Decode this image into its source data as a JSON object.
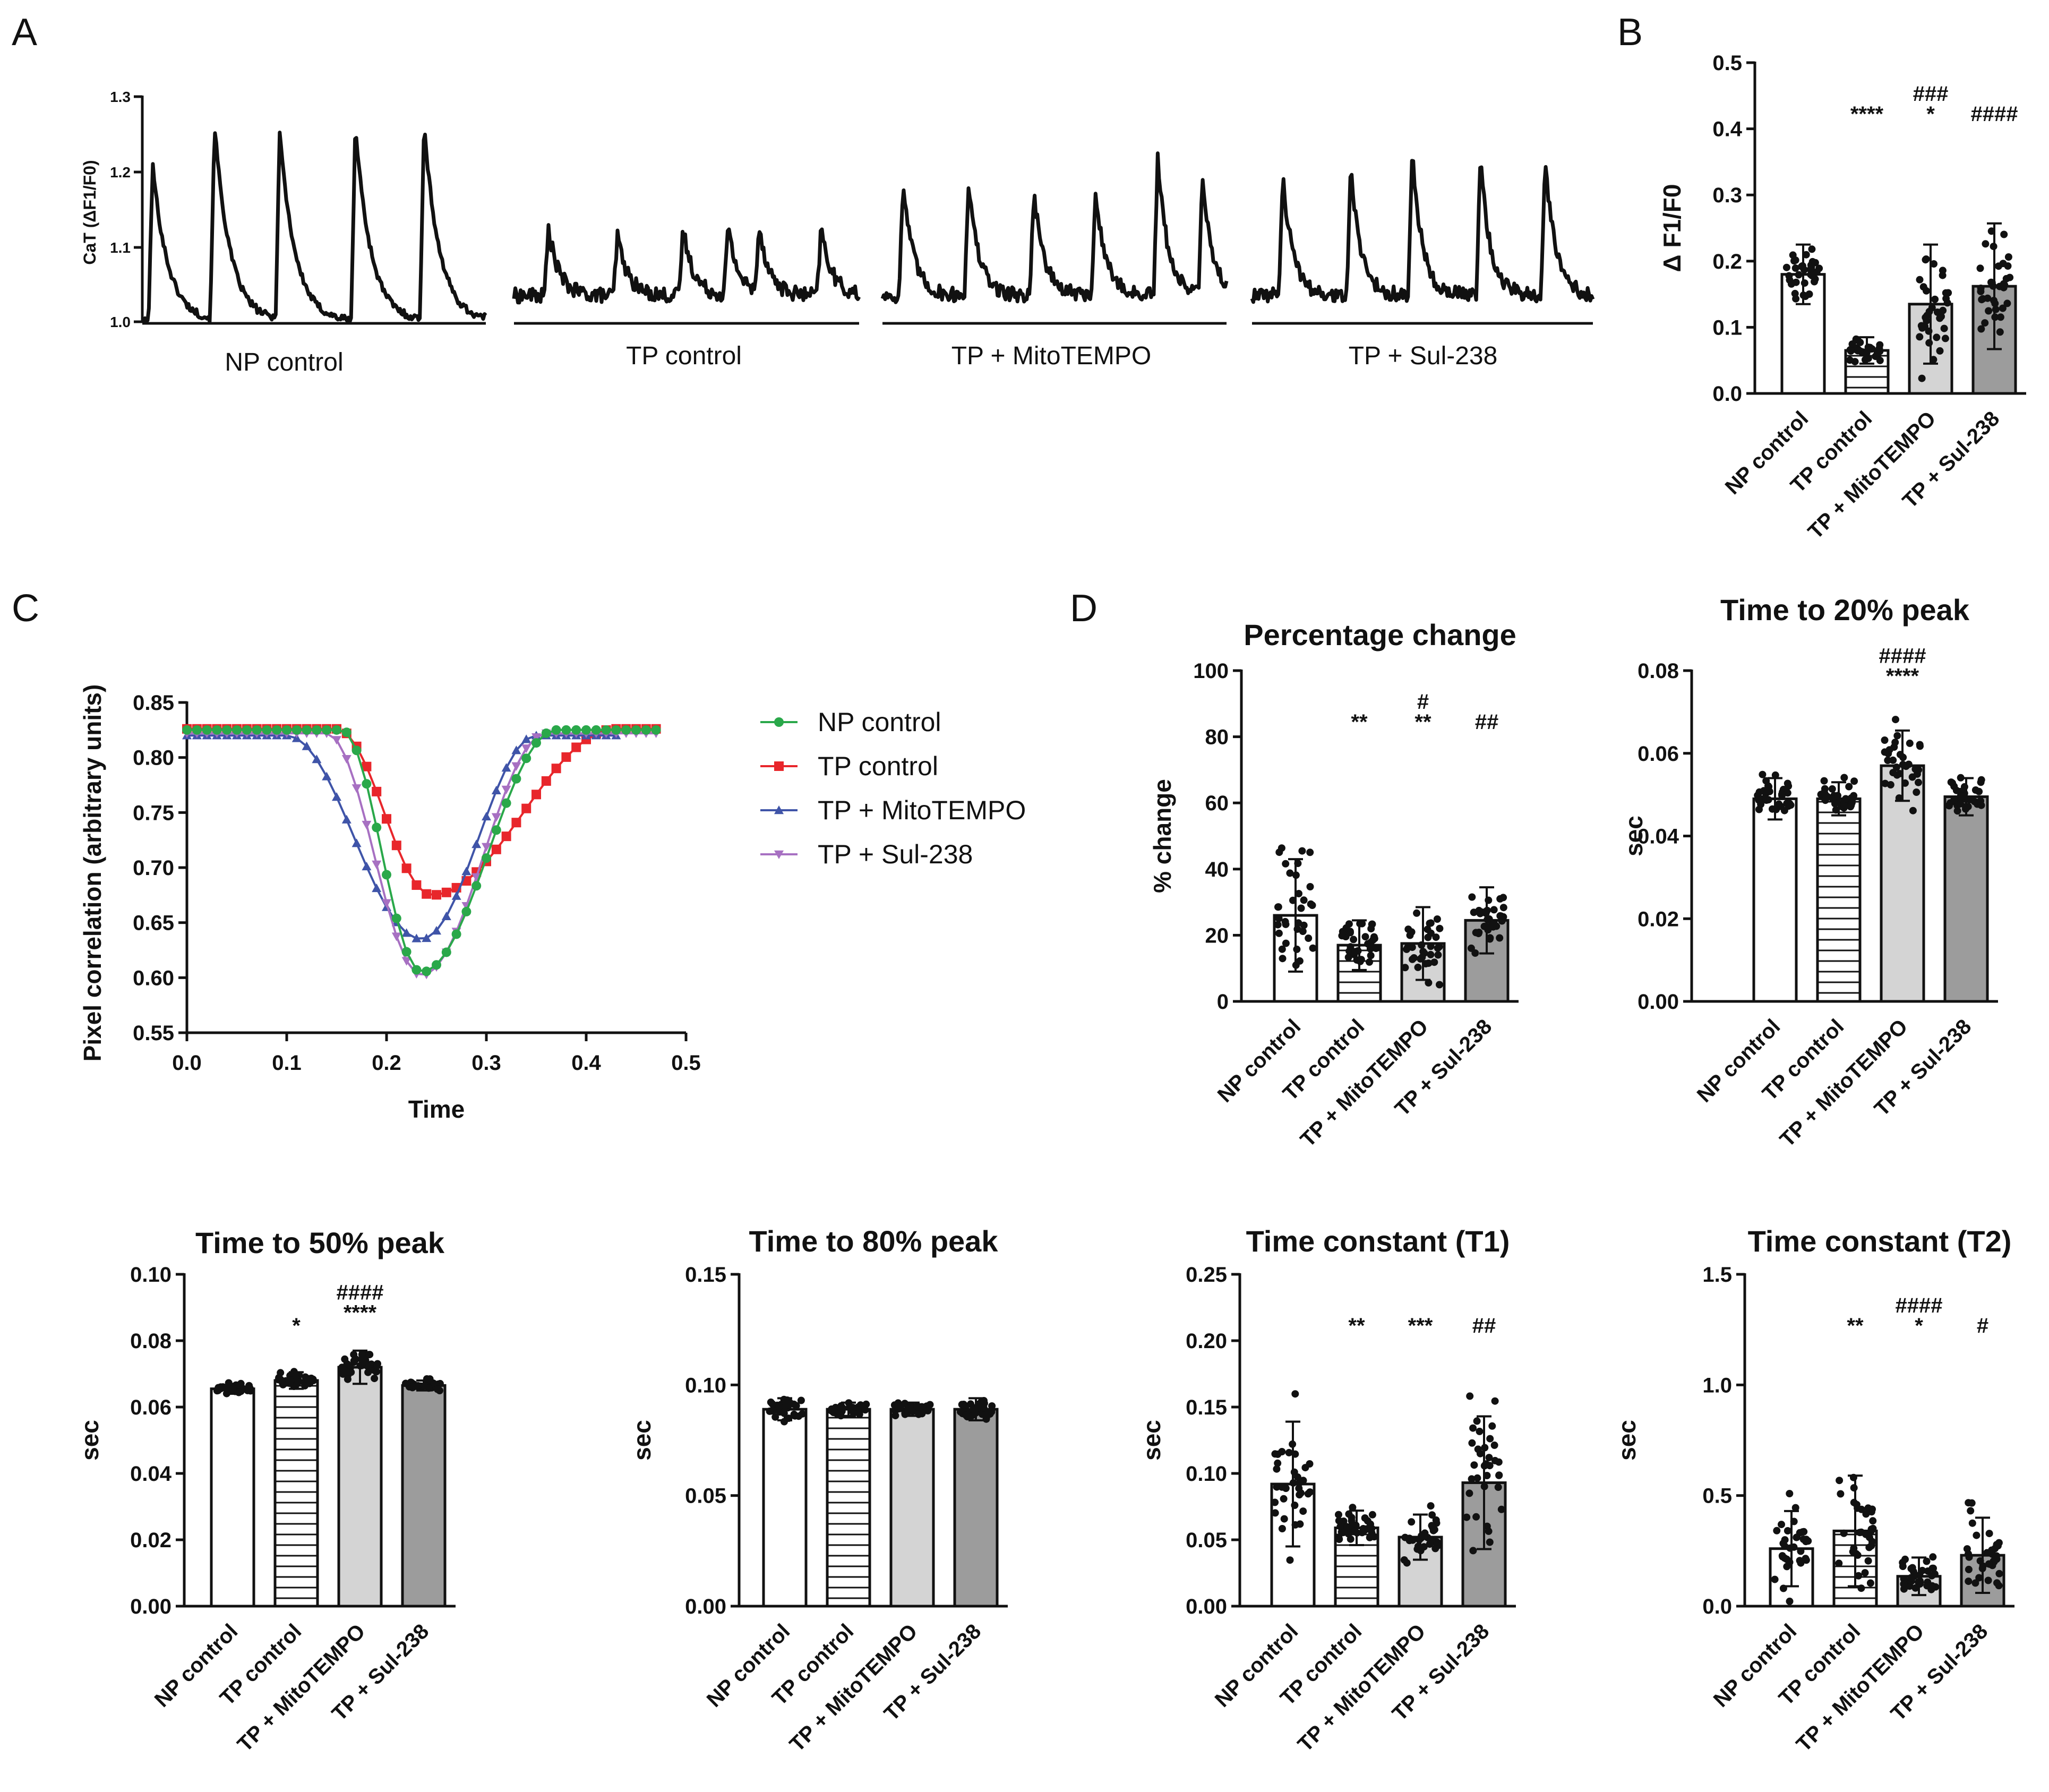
{
  "panels": {
    "A": "A",
    "B": "B",
    "C": "C",
    "D": "D"
  },
  "groups": [
    "NP control",
    "TP control",
    "TP + MitoTEMPO",
    "TP + Sul-238"
  ],
  "colors": {
    "np": "#2aa84a",
    "tp": "#e8262b",
    "mito": "#3f54a8",
    "sul": "#a770c2",
    "bar_tp_fill": "#ffffff",
    "bar_mito_fill": "#d4d4d4",
    "bar_sul_fill": "#9c9c9c"
  },
  "panelA": {
    "ylabel": "CaT (ΔF1/F0)",
    "yticks": [
      "1.3",
      "1.2",
      "1.1",
      "1.0"
    ],
    "ylim": [
      1.0,
      1.3
    ],
    "traces": [
      {
        "label": "NP control",
        "peaks": [
          0.03,
          0.21,
          0.4,
          0.62,
          0.82
        ],
        "amps": [
          0.21,
          0.26,
          0.25,
          0.26,
          0.26
        ]
      },
      {
        "label": "TP control",
        "peaks": [
          0.1,
          0.3,
          0.49,
          0.62,
          0.71,
          0.89
        ],
        "amps": [
          0.09,
          0.08,
          0.09,
          0.09,
          0.09,
          0.09
        ]
      },
      {
        "label": "TP + MitoTEMPO",
        "peaks": [
          0.06,
          0.25,
          0.44,
          0.62,
          0.8,
          0.93
        ],
        "amps": [
          0.15,
          0.15,
          0.14,
          0.14,
          0.18,
          0.15
        ]
      },
      {
        "label": "TP + Sul-238",
        "peaks": [
          0.09,
          0.29,
          0.47,
          0.67,
          0.86
        ],
        "amps": [
          0.16,
          0.17,
          0.19,
          0.18,
          0.18
        ]
      }
    ]
  },
  "chart_data": [
    {
      "id": "B",
      "type": "bar",
      "title": "",
      "ylabel": "Δ F1/F0",
      "ylim": [
        0,
        0.5
      ],
      "yticks": [
        "0.0",
        "0.1",
        "0.2",
        "0.3",
        "0.4",
        "0.5"
      ],
      "categories": [
        "NP control",
        "TP control",
        "TP + MitoTEMPO",
        "TP + Sul-238"
      ],
      "values": [
        0.18,
        0.065,
        0.135,
        0.162
      ],
      "sd": [
        0.045,
        0.02,
        0.09,
        0.095
      ],
      "significance": [
        [],
        [
          "****"
        ],
        [
          "###",
          "*"
        ],
        [
          "####"
        ]
      ]
    },
    {
      "id": "C",
      "type": "line",
      "title": "",
      "xlabel": "Time",
      "ylabel": "Pixel correlation (arbitrary units)",
      "xlim": [
        0.0,
        0.5
      ],
      "ylim": [
        0.55,
        0.85
      ],
      "xticks": [
        "0.0",
        "0.1",
        "0.2",
        "0.3",
        "0.4",
        "0.5"
      ],
      "yticks": [
        "0.55",
        "0.60",
        "0.65",
        "0.70",
        "0.75",
        "0.80",
        "0.85"
      ],
      "series": [
        {
          "name": "NP control",
          "marker": "circle",
          "baseline": 0.825,
          "min": 0.605,
          "t0": 0.155,
          "tmin": 0.235,
          "t1": 0.37,
          "tend": 0.47
        },
        {
          "name": "TP control",
          "marker": "square",
          "baseline": 0.826,
          "min": 0.675,
          "t0": 0.15,
          "tmin": 0.245,
          "t1": 0.43,
          "tend": 0.475
        },
        {
          "name": "TP + MitoTEMPO",
          "marker": "triangle-up",
          "baseline": 0.82,
          "min": 0.635,
          "t0": 0.1,
          "tmin": 0.235,
          "t1": 0.35,
          "tend": 0.43
        },
        {
          "name": "TP + Sul-238",
          "marker": "triangle-down",
          "baseline": 0.822,
          "min": 0.602,
          "t0": 0.14,
          "tmin": 0.235,
          "t1": 0.36,
          "tend": 0.47
        }
      ]
    },
    {
      "id": "D1",
      "type": "bar",
      "title": "Percentage change",
      "ylabel": "% change",
      "ylim": [
        0,
        100
      ],
      "yticks": [
        "0",
        "20",
        "40",
        "60",
        "80",
        "100"
      ],
      "categories": [
        "NP control",
        "TP control",
        "TP + MitoTEMPO",
        "TP + Sul-238"
      ],
      "values": [
        26,
        17,
        17.5,
        24.5
      ],
      "sd": [
        17,
        7.5,
        11,
        10
      ],
      "significance": [
        [],
        [
          "**"
        ],
        [
          "#",
          "**"
        ],
        [
          "##"
        ]
      ]
    },
    {
      "id": "D2",
      "type": "bar",
      "title": "Time to 20% peak",
      "ylabel": "sec",
      "ylim": [
        0,
        0.08
      ],
      "yticks": [
        "0.00",
        "0.02",
        "0.04",
        "0.06",
        "0.08"
      ],
      "categories": [
        "NP control",
        "TP control",
        "TP + MitoTEMPO",
        "TP + Sul-238"
      ],
      "values": [
        0.049,
        0.049,
        0.057,
        0.0495
      ],
      "sd": [
        0.005,
        0.004,
        0.0085,
        0.0045
      ],
      "significance": [
        [],
        [],
        [
          "####",
          "****"
        ],
        []
      ]
    },
    {
      "id": "D3",
      "type": "bar",
      "title": "Time to 50% peak",
      "ylabel": "sec",
      "ylim": [
        0,
        0.1
      ],
      "yticks": [
        "0.00",
        "0.02",
        "0.04",
        "0.06",
        "0.08",
        "0.10"
      ],
      "categories": [
        "NP control",
        "TP control",
        "TP + MitoTEMPO",
        "TP + Sul-238"
      ],
      "values": [
        0.0655,
        0.068,
        0.072,
        0.0665
      ],
      "sd": [
        0.0015,
        0.0025,
        0.005,
        0.0015
      ],
      "significance": [
        [],
        [
          "*"
        ],
        [
          "####",
          "****"
        ],
        []
      ]
    },
    {
      "id": "D4",
      "type": "bar",
      "title": "Time to 80% peak",
      "ylabel": "sec",
      "ylim": [
        0,
        0.15
      ],
      "yticks": [
        "0.00",
        "0.05",
        "0.10",
        "0.15"
      ],
      "categories": [
        "NP control",
        "TP control",
        "TP + MitoTEMPO",
        "TP + Sul-238"
      ],
      "values": [
        0.089,
        0.089,
        0.089,
        0.089
      ],
      "sd": [
        0.005,
        0.003,
        0.003,
        0.005
      ],
      "significance": [
        [],
        [],
        [],
        []
      ]
    },
    {
      "id": "D5",
      "type": "bar",
      "title": "Time constant (T1)",
      "ylabel": "sec",
      "ylim": [
        0,
        0.25
      ],
      "yticks": [
        "0.00",
        "0.05",
        "0.10",
        "0.15",
        "0.20",
        "0.25"
      ],
      "categories": [
        "NP control",
        "TP control",
        "TP + MitoTEMPO",
        "TP + Sul-238"
      ],
      "values": [
        0.092,
        0.059,
        0.052,
        0.093
      ],
      "sd": [
        0.047,
        0.013,
        0.017,
        0.05
      ],
      "significance": [
        [],
        [
          "**"
        ],
        [
          "***"
        ],
        [
          "##"
        ]
      ]
    },
    {
      "id": "D6",
      "type": "bar",
      "title": "Time constant (T2)",
      "ylabel": "sec",
      "ylim": [
        0,
        1.5
      ],
      "yticks": [
        "0.0",
        "0.5",
        "1.0",
        "1.5"
      ],
      "categories": [
        "NP control",
        "TP control",
        "TP + MitoTEMPO",
        "TP + Sul-238"
      ],
      "values": [
        0.26,
        0.34,
        0.135,
        0.23
      ],
      "sd": [
        0.17,
        0.25,
        0.085,
        0.17
      ],
      "significance": [
        [],
        [
          "**"
        ],
        [
          "####",
          "*"
        ],
        [
          "#"
        ]
      ]
    }
  ]
}
